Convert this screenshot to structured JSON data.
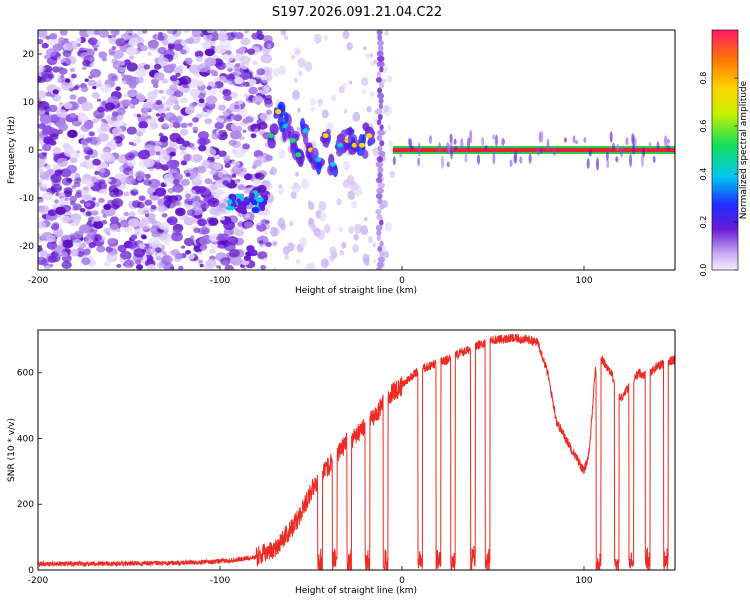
{
  "title": "S197.2026.091.21.04.C22",
  "colors": {
    "snr_line": "#ee2a24",
    "noise": "#7a2be0",
    "carrier_core": "#e8203a",
    "carrier_edge": "#22d04a",
    "axis": "#000000"
  },
  "chart_data": [
    {
      "type": "heatmap",
      "title": "S197.2026.091.21.04.C22",
      "xlabel": "Height of straight line (km)",
      "ylabel": "Frequency (Hz)",
      "xlim": [
        -200,
        150
      ],
      "ylim": [
        -25,
        25
      ],
      "xticks": [
        -200,
        -100,
        0,
        100
      ],
      "yticks": [
        -20,
        -10,
        0,
        10,
        20
      ],
      "colorbar": {
        "label": "Normalized spectral amplitude",
        "range": [
          0,
          1
        ],
        "ticks": [
          0.0,
          0.2,
          0.4,
          0.6,
          0.8
        ],
        "colormap": "rainbow"
      },
      "features": [
        {
          "name": "noise floor",
          "x_range": [
            -200,
            -75
          ],
          "freq_range": [
            -25,
            25
          ]
        },
        {
          "name": "weak fringe",
          "x_range": [
            -95,
            -75
          ],
          "freq_center": -11
        },
        {
          "name": "drifting signal",
          "x_range": [
            -75,
            -5
          ],
          "freq_range": [
            -5,
            9
          ]
        },
        {
          "name": "carrier",
          "x_range": [
            -5,
            150
          ],
          "freq_center": 0
        }
      ]
    },
    {
      "type": "line",
      "xlabel": "Height of straight line (km)",
      "ylabel": "SNR (10 * v/v)",
      "xlim": [
        -200,
        150
      ],
      "ylim": [
        0,
        730
      ],
      "xticks": [
        -200,
        -100,
        0,
        100
      ],
      "yticks": [
        0,
        200,
        400,
        600
      ],
      "series": [
        {
          "name": "SNR",
          "points": [
            [
              -200,
              18
            ],
            [
              -180,
              20
            ],
            [
              -160,
              19
            ],
            [
              -140,
              20
            ],
            [
              -120,
              22
            ],
            [
              -100,
              26
            ],
            [
              -90,
              32
            ],
            [
              -80,
              40
            ],
            [
              -70,
              65
            ],
            [
              -60,
              130
            ],
            [
              -55,
              180
            ],
            [
              -50,
              240
            ],
            [
              -45,
              280
            ],
            [
              -40,
              320
            ],
            [
              -35,
              360
            ],
            [
              -30,
              390
            ],
            [
              -25,
              410
            ],
            [
              -20,
              440
            ],
            [
              -15,
              470
            ],
            [
              -10,
              510
            ],
            [
              -5,
              540
            ],
            [
              0,
              560
            ],
            [
              5,
              590
            ],
            [
              10,
              610
            ],
            [
              15,
              620
            ],
            [
              20,
              630
            ],
            [
              25,
              640
            ],
            [
              30,
              655
            ],
            [
              35,
              665
            ],
            [
              40,
              680
            ],
            [
              45,
              690
            ],
            [
              50,
              700
            ],
            [
              55,
              702
            ],
            [
              60,
              704
            ],
            [
              65,
              703
            ],
            [
              70,
              700
            ],
            [
              75,
              690
            ],
            [
              80,
              600
            ],
            [
              85,
              450
            ],
            [
              90,
              400
            ],
            [
              95,
              350
            ],
            [
              98,
              320
            ],
            [
              100,
              300
            ],
            [
              103,
              360
            ],
            [
              106,
              600
            ],
            [
              110,
              640
            ],
            [
              115,
              600
            ],
            [
              120,
              520
            ],
            [
              125,
              560
            ],
            [
              130,
              600
            ],
            [
              135,
              590
            ],
            [
              140,
              620
            ],
            [
              145,
              630
            ],
            [
              150,
              640
            ]
          ],
          "dropouts": [
            [
              -45,
              0,
              55
            ],
            [
              -37,
              0,
              60
            ],
            [
              -29,
              0,
              55
            ],
            [
              -19,
              0,
              55
            ],
            [
              -9,
              0,
              40
            ],
            [
              10,
              0,
              50
            ],
            [
              20,
              0,
              50
            ],
            [
              28,
              0,
              55
            ],
            [
              39,
              0,
              60
            ],
            [
              47,
              0,
              60
            ],
            [
              108,
              0,
              40
            ],
            [
              118,
              0,
              40
            ],
            [
              126,
              0,
              45
            ],
            [
              135,
              0,
              60
            ],
            [
              145,
              0,
              60
            ]
          ]
        }
      ]
    }
  ]
}
